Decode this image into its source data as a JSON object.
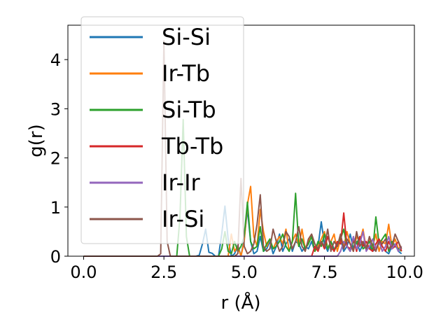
{
  "chart_data": {
    "type": "line",
    "title": "",
    "xlabel": "r (Å)",
    "ylabel": "g(r)",
    "xlim": [
      -0.49,
      10.3
    ],
    "ylim": [
      0,
      4.7
    ],
    "xticks": [
      0.0,
      2.5,
      5.0,
      7.5,
      10.0
    ],
    "xtick_labels": [
      "0.0",
      "2.5",
      "5.0",
      "7.5",
      "10.0"
    ],
    "yticks": [
      0,
      1,
      2,
      3,
      4
    ],
    "ytick_labels": [
      "0",
      "1",
      "2",
      "3",
      "4"
    ],
    "grid": false,
    "legend_position": "upper-left",
    "x_start": 0.0,
    "x_step": 0.1,
    "series": [
      {
        "name": "Si-Si",
        "color": "#1f77b4",
        "values": [
          0,
          0,
          0,
          0,
          0,
          0,
          0,
          0,
          0,
          0,
          0,
          0,
          0,
          0,
          0,
          0,
          0,
          0,
          0,
          0,
          0,
          0,
          0,
          0,
          0,
          0,
          0,
          0,
          0,
          0,
          0,
          0,
          0,
          0,
          0,
          0,
          0.02,
          0.25,
          0.55,
          0.08,
          0.06,
          0,
          0,
          0.45,
          1.02,
          0.35,
          0,
          0.05,
          0.22,
          0,
          0.35,
          0.95,
          0.3,
          0.05,
          0.1,
          0.4,
          0.1,
          0.15,
          0.3,
          0.05,
          0.2,
          0.45,
          0.1,
          0.25,
          0.35,
          0.1,
          0.3,
          0.25,
          0.1,
          0.2,
          0.15,
          0.3,
          0.1,
          0.2,
          0.7,
          0.25,
          0.1,
          0.3,
          0.15,
          0.2,
          0.35,
          0.1,
          0.2,
          0.45,
          0.15,
          0.3,
          0.1,
          0.25,
          0.15,
          0.2,
          0.1,
          0.15,
          0.3,
          0.2,
          0.1,
          0.05,
          0.2,
          0.25,
          0.1,
          0.05
        ]
      },
      {
        "name": "Ir-Tb",
        "color": "#ff7f0e",
        "values": [
          0,
          0,
          0,
          0,
          0,
          0,
          0,
          0,
          0,
          0,
          0,
          0,
          0,
          0,
          0,
          0,
          0,
          0,
          0,
          0,
          0,
          0,
          0,
          0,
          0,
          0,
          0,
          0,
          0,
          0,
          0,
          0,
          0,
          0,
          0,
          0,
          0,
          0,
          0,
          0,
          0,
          0,
          0,
          0,
          0,
          0,
          0.45,
          0.1,
          0.2,
          0,
          0.3,
          1.05,
          1.42,
          0.4,
          0.2,
          0.95,
          0.5,
          0.2,
          0.35,
          0.15,
          0.3,
          0.4,
          0.25,
          0.55,
          0.1,
          0.3,
          0.45,
          0.2,
          0.55,
          0.15,
          0.3,
          0.4,
          0.1,
          0.2,
          0.35,
          0.5,
          0.15,
          0.3,
          0.45,
          0.1,
          0.35,
          0.2,
          0.5,
          0.25,
          0.1,
          0.4,
          0.3,
          0.55,
          0.15,
          0.35,
          0.2,
          0.45,
          0.1,
          0.3,
          0.25,
          0.65,
          0.2,
          0.35,
          0.15,
          0.2
        ]
      },
      {
        "name": "Si-Tb",
        "color": "#2ca02c",
        "values": [
          0,
          0,
          0,
          0,
          0,
          0,
          0,
          0,
          0,
          0,
          0,
          0,
          0,
          0,
          0,
          0,
          0,
          0,
          0,
          0,
          0,
          0,
          0,
          0,
          0,
          0,
          0,
          0,
          0,
          0,
          0.8,
          2.78,
          0.4,
          0,
          0,
          0,
          0,
          0,
          0,
          0,
          0,
          0,
          0,
          0.15,
          0.5,
          0.1,
          0.05,
          0.3,
          0.1,
          0.2,
          0.4,
          1.1,
          0.3,
          0.15,
          0.2,
          0.6,
          0.1,
          0.25,
          0.35,
          0.15,
          0.2,
          0.3,
          0.45,
          0.2,
          0.1,
          0.3,
          1.28,
          0.2,
          0.35,
          0.15,
          0.25,
          0.4,
          0.1,
          0.3,
          0.2,
          0.45,
          0.15,
          0.3,
          0.1,
          0.25,
          0.35,
          0.55,
          0.2,
          0.1,
          0.3,
          0.25,
          0.4,
          0.15,
          0.2,
          0.3,
          0.1,
          0.8,
          0.25,
          0.35,
          0.45,
          0.1,
          0.3,
          0.2,
          0.15,
          0.1
        ]
      },
      {
        "name": "Tb-Tb",
        "color": "#d62728",
        "values": [
          0,
          0,
          0,
          0,
          0,
          0,
          0,
          0,
          0,
          0,
          0,
          0,
          0,
          0,
          0,
          0,
          0,
          0,
          0,
          0,
          0,
          0,
          0,
          0,
          0,
          0,
          0,
          0,
          0,
          0,
          0,
          0,
          0,
          0,
          0,
          0,
          0,
          0,
          0,
          0,
          0,
          0,
          0,
          0,
          0,
          0,
          0,
          0,
          0,
          0,
          0,
          0,
          0,
          0,
          0,
          0,
          0,
          0,
          0,
          0,
          0,
          0,
          0,
          0,
          0,
          0,
          0,
          0,
          0,
          0,
          0,
          0,
          0.2,
          0.1,
          0.3,
          0.15,
          0.4,
          0.2,
          0.1,
          0.3,
          0.25,
          0.88,
          0.2,
          0.15,
          0.35,
          0.1,
          0.4,
          0.2,
          0.3,
          0.15,
          0.1,
          0.25,
          0.35,
          0.2,
          0.1,
          0.3,
          0.15,
          0.2,
          0.3,
          0.1
        ]
      },
      {
        "name": "Ir-Ir",
        "color": "#9467bd",
        "values": [
          0,
          0,
          0,
          0,
          0,
          0,
          0,
          0,
          0,
          0,
          0,
          0,
          0,
          0,
          0,
          0,
          0,
          0,
          0,
          0,
          0,
          0,
          0,
          0,
          0,
          0,
          0,
          0,
          0,
          0,
          0,
          0,
          0,
          0,
          0,
          0,
          0,
          0,
          0,
          0,
          0,
          0,
          0,
          0,
          0,
          0,
          0,
          0,
          0,
          0,
          0,
          0,
          0,
          0,
          0,
          0,
          0,
          0,
          0,
          0,
          0,
          0,
          0,
          0,
          0,
          0,
          0,
          0,
          0,
          0,
          0,
          0,
          0,
          0,
          0,
          0,
          0,
          0,
          0,
          0,
          0.1,
          0.3,
          0.2,
          0.1,
          0.4,
          0.15,
          0.25,
          0.5,
          0.1,
          0.2,
          0.35,
          0.15,
          0.3,
          0.1,
          0.2,
          0.4,
          0.15,
          0.25,
          0.1,
          0.2
        ]
      },
      {
        "name": "Ir-Si",
        "color": "#8c564b",
        "values": [
          0,
          0,
          0,
          0,
          0,
          0,
          0,
          0,
          0,
          0,
          0,
          0,
          0,
          0,
          0,
          0,
          0,
          0,
          0,
          0,
          0,
          0,
          0,
          0,
          0.05,
          4.38,
          0.3,
          0,
          0,
          0,
          0,
          0,
          0,
          0,
          0,
          0,
          0,
          0,
          0,
          0,
          0,
          0,
          0,
          0,
          0,
          0,
          0,
          0,
          0.05,
          1.58,
          0.2,
          0.05,
          0.1,
          0.25,
          0.65,
          1.25,
          0.2,
          0.1,
          0.15,
          0.55,
          0.3,
          0.1,
          0.2,
          0.5,
          0.4,
          0.15,
          0.3,
          0.6,
          0.2,
          0.1,
          0.35,
          0.45,
          0.25,
          0.15,
          0.3,
          0.2,
          0.55,
          0.1,
          0.3,
          0.2,
          0.45,
          0.15,
          0.35,
          0.25,
          0.1,
          0.5,
          0.2,
          0.3,
          0.15,
          0.4,
          0.2,
          0.1,
          0.3,
          0.25,
          0.35,
          0.15,
          0.2,
          0.45,
          0.3,
          0.15
        ]
      }
    ]
  }
}
